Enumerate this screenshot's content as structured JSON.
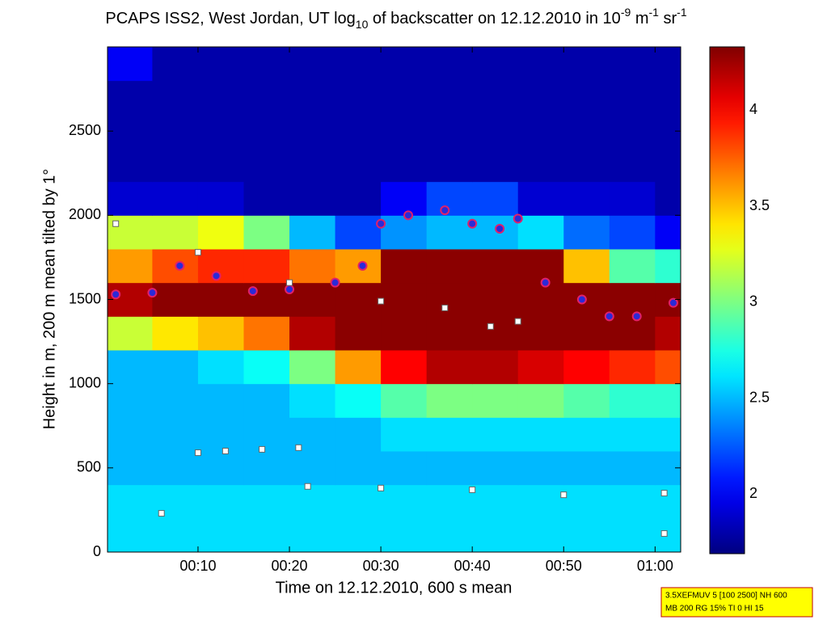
{
  "chart_data": {
    "type": "heatmap",
    "title": [
      "PCAPS ISS2, West Jordan, UT log",
      "10",
      " of backscatter on 12.12.2010 in 10",
      "-9",
      " m",
      "-1",
      " sr",
      "-1"
    ],
    "x_label": "Time on 12.12.2010, 600 s mean",
    "y_label": "Height in m, 200 m mean tilted by 1°",
    "xlim": [
      0.1,
      62.8
    ],
    "ylim": [
      0,
      3000
    ],
    "xticks": [
      {
        "value": 10,
        "label": "00:10"
      },
      {
        "value": 20,
        "label": "00:20"
      },
      {
        "value": 30,
        "label": "00:30"
      },
      {
        "value": 40,
        "label": "00:40"
      },
      {
        "value": 50,
        "label": "00:50"
      },
      {
        "value": 60,
        "label": "01:00"
      }
    ],
    "yticks": [
      0,
      500,
      1000,
      1500,
      2000,
      2500
    ],
    "colormap": "jet",
    "clim": [
      1.69,
      4.33
    ],
    "cticks": [
      2,
      2.5,
      3,
      3.5,
      4
    ],
    "x": [
      2.5,
      7.5,
      12.5,
      17.5,
      22.5,
      27.5,
      32.5,
      37.5,
      42.5,
      47.5,
      52.5,
      57.5,
      62.5
    ],
    "y": [
      100,
      300,
      500,
      700,
      900,
      1100,
      1300,
      1500,
      1700,
      1900,
      2100,
      2300,
      2500,
      2700,
      2900
    ],
    "z": [
      [
        2.6,
        2.6,
        2.6,
        2.6,
        2.6,
        2.6,
        2.6,
        2.6,
        2.6,
        2.6,
        2.6,
        2.6,
        2.6
      ],
      [
        2.6,
        2.6,
        2.6,
        2.6,
        2.6,
        2.6,
        2.6,
        2.6,
        2.6,
        2.6,
        2.6,
        2.6,
        2.6
      ],
      [
        2.5,
        2.5,
        2.5,
        2.5,
        2.5,
        2.5,
        2.5,
        2.5,
        2.5,
        2.5,
        2.5,
        2.5,
        2.5
      ],
      [
        2.5,
        2.5,
        2.5,
        2.5,
        2.5,
        2.5,
        2.6,
        2.6,
        2.6,
        2.6,
        2.6,
        2.6,
        2.6
      ],
      [
        2.5,
        2.5,
        2.5,
        2.5,
        2.6,
        2.7,
        2.9,
        3.0,
        3.0,
        3.0,
        2.9,
        2.8,
        2.8
      ],
      [
        2.5,
        2.5,
        2.6,
        2.7,
        3.0,
        3.6,
        4.0,
        4.2,
        4.2,
        4.1,
        4.0,
        3.9,
        3.8
      ],
      [
        3.2,
        3.4,
        3.5,
        3.7,
        4.2,
        4.3,
        4.3,
        4.3,
        4.3,
        4.3,
        4.3,
        4.3,
        4.2
      ],
      [
        4.2,
        4.3,
        4.3,
        4.3,
        4.3,
        4.3,
        4.3,
        4.3,
        4.3,
        4.3,
        4.3,
        4.3,
        4.3
      ],
      [
        3.6,
        3.8,
        3.9,
        3.9,
        3.7,
        3.6,
        4.3,
        4.3,
        4.3,
        4.3,
        3.5,
        2.9,
        2.8
      ],
      [
        3.2,
        3.2,
        3.3,
        3.0,
        2.5,
        2.2,
        2.4,
        2.5,
        2.5,
        2.6,
        2.3,
        2.2,
        2.0
      ],
      [
        1.9,
        1.9,
        1.9,
        1.8,
        1.8,
        1.8,
        2.0,
        2.2,
        2.2,
        1.9,
        1.9,
        1.9,
        1.8
      ],
      [
        1.8,
        1.8,
        1.8,
        1.8,
        1.8,
        1.8,
        1.8,
        1.8,
        1.8,
        1.8,
        1.8,
        1.8,
        1.8
      ],
      [
        1.8,
        1.8,
        1.8,
        1.8,
        1.8,
        1.8,
        1.8,
        1.8,
        1.8,
        1.8,
        1.8,
        1.8,
        1.8
      ],
      [
        1.8,
        1.8,
        1.8,
        1.8,
        1.8,
        1.8,
        1.8,
        1.8,
        1.8,
        1.8,
        1.8,
        1.8,
        1.8
      ],
      [
        2.0,
        1.8,
        1.8,
        1.8,
        1.8,
        1.8,
        1.8,
        1.8,
        1.8,
        1.8,
        1.8,
        1.8,
        1.8
      ]
    ],
    "series": [
      {
        "marker": "circle",
        "color": "#2a2ad8",
        "x": [
          1,
          5,
          8,
          12,
          16,
          20,
          25,
          28,
          30,
          33,
          37,
          40,
          43,
          45,
          48,
          52,
          55,
          58,
          62
        ],
        "values": [
          1530,
          1540,
          1700,
          1640,
          1550,
          1560,
          1600,
          1700,
          1950,
          2000,
          2030,
          1950,
          1920,
          1980,
          1600,
          1500,
          1400,
          1400,
          1480
        ]
      },
      {
        "marker": "square",
        "color": "#ffffff",
        "x": [
          1,
          10,
          20,
          30,
          37,
          42,
          45,
          10,
          13,
          17,
          21,
          22,
          30,
          40,
          50,
          61,
          6,
          61
        ],
        "values": [
          1950,
          1780,
          1600,
          1490,
          1450,
          1340,
          1370,
          590,
          600,
          610,
          620,
          390,
          380,
          370,
          340,
          350,
          230,
          110
        ]
      }
    ],
    "annotation": [
      "3.5XEFMUV 5 [100 2500] NH 600",
      "MB 200 RG 15% TI 0 HI 15"
    ]
  }
}
